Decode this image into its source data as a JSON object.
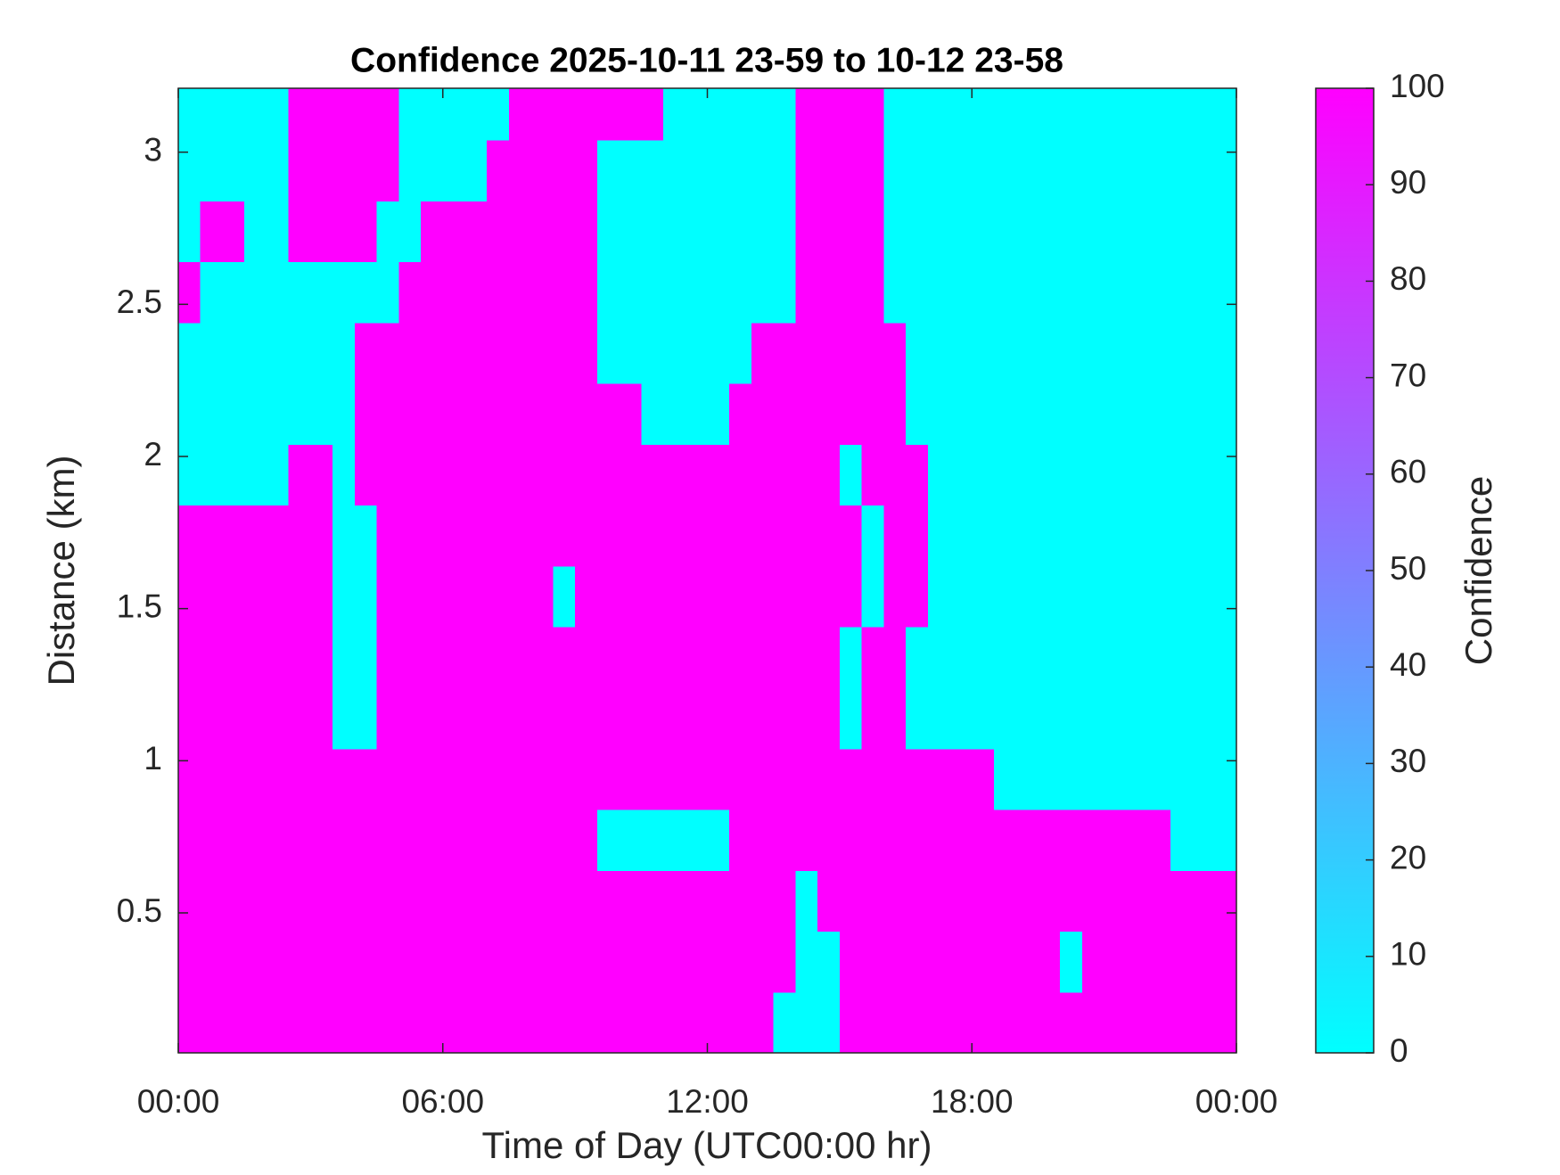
{
  "chart_data": {
    "type": "heatmap",
    "title": "Confidence 2025-10-11 23-59 to 10-12 23-58",
    "xlabel": "Time of Day (UTC00:00 hr)",
    "ylabel": "Distance (km)",
    "colorbar_label": "Confidence",
    "colormap": [
      "#00ffff",
      "#ff00ff"
    ],
    "clim": [
      0,
      100
    ],
    "cticks": [
      0,
      10,
      20,
      30,
      40,
      50,
      60,
      70,
      80,
      90,
      100
    ],
    "xlim": [
      0,
      24
    ],
    "xticks": [
      {
        "value": 0,
        "label": "00:00"
      },
      {
        "value": 6,
        "label": "06:00"
      },
      {
        "value": 12,
        "label": "12:00"
      },
      {
        "value": 18,
        "label": "18:00"
      },
      {
        "value": 24,
        "label": "00:00"
      }
    ],
    "ylim": [
      0.04,
      3.21
    ],
    "yticks": [
      0.5,
      1,
      1.5,
      2,
      2.5,
      3
    ],
    "x": [
      0.25,
      0.75,
      1.25,
      1.75,
      2.25,
      2.75,
      3.25,
      3.75,
      4.25,
      4.75,
      5.25,
      5.75,
      6.25,
      6.75,
      7.25,
      7.75,
      8.25,
      8.75,
      9.25,
      9.75,
      10.25,
      10.75,
      11.25,
      11.75,
      12.25,
      12.75,
      13.25,
      13.75,
      14.25,
      14.75,
      15.25,
      15.75,
      16.25,
      16.75,
      17.25,
      17.75,
      18.25,
      18.75,
      19.25,
      19.75,
      20.25,
      20.75,
      21.25,
      21.75,
      22.25,
      22.75,
      23.25,
      23.75
    ],
    "y": [
      0.14,
      0.34,
      0.54,
      0.74,
      0.94,
      1.14,
      1.34,
      1.54,
      1.74,
      1.94,
      2.14,
      2.34,
      2.54,
      2.74,
      2.94,
      3.14
    ],
    "z": [
      [
        100,
        100,
        100,
        100,
        100,
        100,
        100,
        100,
        100,
        100,
        100,
        100,
        100,
        100,
        100,
        100,
        100,
        100,
        100,
        100,
        100,
        100,
        100,
        100,
        100,
        100,
        100,
        0,
        0,
        0,
        100,
        100,
        100,
        100,
        100,
        100,
        100,
        100,
        100,
        100,
        100,
        100,
        100,
        100,
        100,
        100,
        100,
        100
      ],
      [
        100,
        100,
        100,
        100,
        100,
        100,
        100,
        100,
        100,
        100,
        100,
        100,
        100,
        100,
        100,
        100,
        100,
        100,
        100,
        100,
        100,
        100,
        100,
        100,
        100,
        100,
        100,
        100,
        0,
        0,
        100,
        100,
        100,
        100,
        100,
        100,
        100,
        100,
        100,
        100,
        0,
        100,
        100,
        100,
        100,
        100,
        100,
        100
      ],
      [
        100,
        100,
        100,
        100,
        100,
        100,
        100,
        100,
        100,
        100,
        100,
        100,
        100,
        100,
        100,
        100,
        100,
        100,
        100,
        100,
        100,
        100,
        100,
        100,
        100,
        100,
        100,
        100,
        0,
        100,
        100,
        100,
        100,
        100,
        100,
        100,
        100,
        100,
        100,
        100,
        100,
        100,
        100,
        100,
        100,
        100,
        100,
        100
      ],
      [
        100,
        100,
        100,
        100,
        100,
        100,
        100,
        100,
        100,
        100,
        100,
        100,
        100,
        100,
        100,
        100,
        100,
        100,
        100,
        0,
        0,
        0,
        0,
        0,
        0,
        100,
        100,
        100,
        100,
        100,
        100,
        100,
        100,
        100,
        100,
        100,
        100,
        100,
        100,
        100,
        100,
        100,
        100,
        100,
        100,
        0,
        0,
        0
      ],
      [
        100,
        100,
        100,
        100,
        100,
        100,
        100,
        100,
        100,
        100,
        100,
        100,
        100,
        100,
        100,
        100,
        100,
        100,
        100,
        100,
        100,
        100,
        100,
        100,
        100,
        100,
        100,
        100,
        100,
        100,
        100,
        100,
        100,
        100,
        100,
        100,
        100,
        0,
        0,
        0,
        0,
        0,
        0,
        0,
        0,
        0,
        0,
        0
      ],
      [
        100,
        100,
        100,
        100,
        100,
        100,
        100,
        0,
        0,
        100,
        100,
        100,
        100,
        100,
        100,
        100,
        100,
        100,
        100,
        100,
        100,
        100,
        100,
        100,
        100,
        100,
        100,
        100,
        100,
        100,
        0,
        100,
        100,
        0,
        0,
        0,
        0,
        0,
        0,
        0,
        0,
        0,
        0,
        0,
        0,
        0,
        0,
        0
      ],
      [
        100,
        100,
        100,
        100,
        100,
        100,
        100,
        0,
        0,
        100,
        100,
        100,
        100,
        100,
        100,
        100,
        100,
        100,
        100,
        100,
        100,
        100,
        100,
        100,
        100,
        100,
        100,
        100,
        100,
        100,
        0,
        100,
        100,
        0,
        0,
        0,
        0,
        0,
        0,
        0,
        0,
        0,
        0,
        0,
        0,
        0,
        0,
        0
      ],
      [
        100,
        100,
        100,
        100,
        100,
        100,
        100,
        0,
        0,
        100,
        100,
        100,
        100,
        100,
        100,
        100,
        100,
        0,
        100,
        100,
        100,
        100,
        100,
        100,
        100,
        100,
        100,
        100,
        100,
        100,
        100,
        0,
        100,
        100,
        0,
        0,
        0,
        0,
        0,
        0,
        0,
        0,
        0,
        0,
        0,
        0,
        0,
        0
      ],
      [
        100,
        100,
        100,
        100,
        100,
        100,
        100,
        0,
        0,
        100,
        100,
        100,
        100,
        100,
        100,
        100,
        100,
        100,
        100,
        100,
        100,
        100,
        100,
        100,
        100,
        100,
        100,
        100,
        100,
        100,
        100,
        0,
        100,
        100,
        0,
        0,
        0,
        0,
        0,
        0,
        0,
        0,
        0,
        0,
        0,
        0,
        0,
        0
      ],
      [
        0,
        0,
        0,
        0,
        0,
        100,
        100,
        0,
        100,
        100,
        100,
        100,
        100,
        100,
        100,
        100,
        100,
        100,
        100,
        100,
        100,
        100,
        100,
        100,
        100,
        100,
        100,
        100,
        100,
        100,
        0,
        100,
        100,
        100,
        0,
        0,
        0,
        0,
        0,
        0,
        0,
        0,
        0,
        0,
        0,
        0,
        0,
        0
      ],
      [
        0,
        0,
        0,
        0,
        0,
        0,
        0,
        0,
        100,
        100,
        100,
        100,
        100,
        100,
        100,
        100,
        100,
        100,
        100,
        100,
        100,
        0,
        0,
        0,
        0,
        100,
        100,
        100,
        100,
        100,
        100,
        100,
        100,
        0,
        0,
        0,
        0,
        0,
        0,
        0,
        0,
        0,
        0,
        0,
        0,
        0,
        0,
        0
      ],
      [
        0,
        0,
        0,
        0,
        0,
        0,
        0,
        0,
        100,
        100,
        100,
        100,
        100,
        100,
        100,
        100,
        100,
        100,
        100,
        0,
        0,
        0,
        0,
        0,
        0,
        0,
        100,
        100,
        100,
        100,
        100,
        100,
        100,
        0,
        0,
        0,
        0,
        0,
        0,
        0,
        0,
        0,
        0,
        0,
        0,
        0,
        0,
        0
      ],
      [
        100,
        0,
        0,
        0,
        0,
        0,
        0,
        0,
        0,
        0,
        100,
        100,
        100,
        100,
        100,
        100,
        100,
        100,
        100,
        0,
        0,
        0,
        0,
        0,
        0,
        0,
        0,
        0,
        100,
        100,
        100,
        100,
        0,
        0,
        0,
        0,
        0,
        0,
        0,
        0,
        0,
        0,
        0,
        0,
        0,
        0,
        0,
        0
      ],
      [
        0,
        100,
        100,
        0,
        0,
        100,
        100,
        100,
        100,
        0,
        0,
        100,
        100,
        100,
        100,
        100,
        100,
        100,
        100,
        0,
        0,
        0,
        0,
        0,
        0,
        0,
        0,
        0,
        100,
        100,
        100,
        100,
        0,
        0,
        0,
        0,
        0,
        0,
        0,
        0,
        0,
        0,
        0,
        0,
        0,
        0,
        0,
        0
      ],
      [
        0,
        0,
        0,
        0,
        0,
        100,
        100,
        100,
        100,
        100,
        0,
        0,
        0,
        0,
        100,
        100,
        100,
        100,
        100,
        0,
        0,
        0,
        0,
        0,
        0,
        0,
        0,
        0,
        100,
        100,
        100,
        100,
        0,
        0,
        0,
        0,
        0,
        0,
        0,
        0,
        0,
        0,
        0,
        0,
        0,
        0,
        0,
        0
      ],
      [
        0,
        0,
        0,
        0,
        0,
        100,
        100,
        100,
        100,
        100,
        0,
        0,
        0,
        0,
        0,
        100,
        100,
        100,
        100,
        100,
        100,
        100,
        0,
        0,
        0,
        0,
        0,
        0,
        100,
        100,
        100,
        100,
        0,
        0,
        0,
        0,
        0,
        0,
        0,
        0,
        0,
        0,
        0,
        0,
        0,
        0,
        0,
        0
      ]
    ]
  }
}
